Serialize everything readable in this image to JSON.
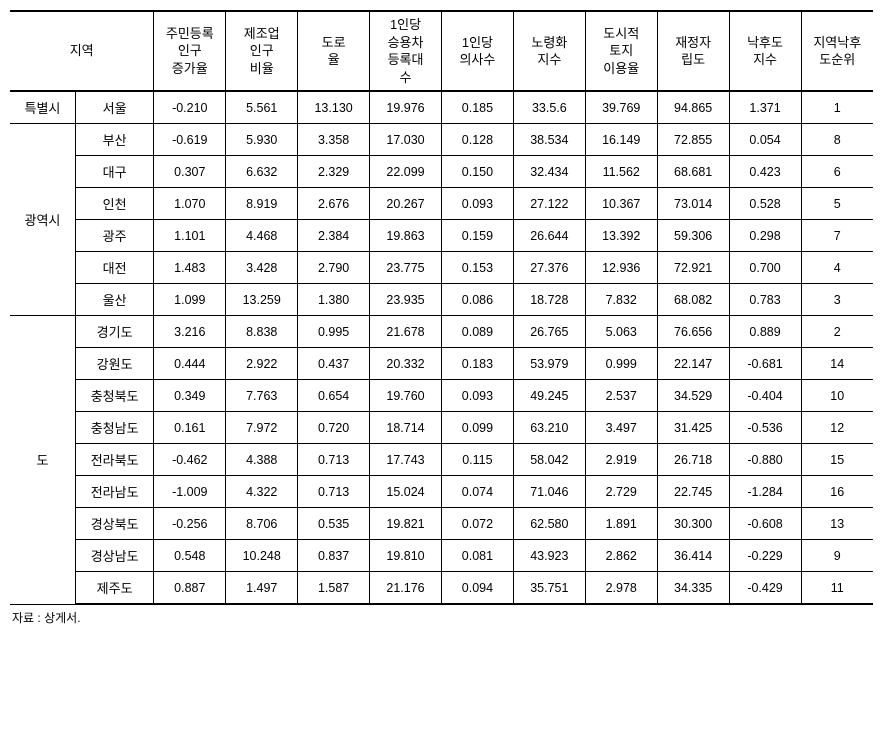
{
  "headers": {
    "region": "지역",
    "col1": "주민등록\n인구\n증가율",
    "col2": "제조업\n인구\n비율",
    "col3": "도로\n율",
    "col4": "1인당\n승용차\n등록대\n수",
    "col5": "1인당\n의사수",
    "col6": "노령화\n지수",
    "col7": "도시적\n토지\n이용율",
    "col8": "재정자\n립도",
    "col9": "낙후도\n지수",
    "col10": "지역낙후\n도순위"
  },
  "groups": [
    {
      "label": "특별시",
      "rows": [
        {
          "region": "서울",
          "v": [
            "-0.210",
            "5.561",
            "13.130",
            "19.976",
            "0.185",
            "33.5.6",
            "39.769",
            "94.865",
            "1.371",
            "1"
          ]
        }
      ]
    },
    {
      "label": "광역시",
      "rows": [
        {
          "region": "부산",
          "v": [
            "-0.619",
            "5.930",
            "3.358",
            "17.030",
            "0.128",
            "38.534",
            "16.149",
            "72.855",
            "0.054",
            "8"
          ]
        },
        {
          "region": "대구",
          "v": [
            "0.307",
            "6.632",
            "2.329",
            "22.099",
            "0.150",
            "32.434",
            "11.562",
            "68.681",
            "0.423",
            "6"
          ]
        },
        {
          "region": "인천",
          "v": [
            "1.070",
            "8.919",
            "2.676",
            "20.267",
            "0.093",
            "27.122",
            "10.367",
            "73.014",
            "0.528",
            "5"
          ]
        },
        {
          "region": "광주",
          "v": [
            "1.101",
            "4.468",
            "2.384",
            "19.863",
            "0.159",
            "26.644",
            "13.392",
            "59.306",
            "0.298",
            "7"
          ]
        },
        {
          "region": "대전",
          "v": [
            "1.483",
            "3.428",
            "2.790",
            "23.775",
            "0.153",
            "27.376",
            "12.936",
            "72.921",
            "0.700",
            "4"
          ]
        },
        {
          "region": "울산",
          "v": [
            "1.099",
            "13.259",
            "1.380",
            "23.935",
            "0.086",
            "18.728",
            "7.832",
            "68.082",
            "0.783",
            "3"
          ]
        }
      ]
    },
    {
      "label": "도",
      "rows": [
        {
          "region": "경기도",
          "v": [
            "3.216",
            "8.838",
            "0.995",
            "21.678",
            "0.089",
            "26.765",
            "5.063",
            "76.656",
            "0.889",
            "2"
          ]
        },
        {
          "region": "강원도",
          "v": [
            "0.444",
            "2.922",
            "0.437",
            "20.332",
            "0.183",
            "53.979",
            "0.999",
            "22.147",
            "-0.681",
            "14"
          ]
        },
        {
          "region": "충청북도",
          "v": [
            "0.349",
            "7.763",
            "0.654",
            "19.760",
            "0.093",
            "49.245",
            "2.537",
            "34.529",
            "-0.404",
            "10"
          ]
        },
        {
          "region": "충청남도",
          "v": [
            "0.161",
            "7.972",
            "0.720",
            "18.714",
            "0.099",
            "63.210",
            "3.497",
            "31.425",
            "-0.536",
            "12"
          ]
        },
        {
          "region": "전라북도",
          "v": [
            "-0.462",
            "4.388",
            "0.713",
            "17.743",
            "0.115",
            "58.042",
            "2.919",
            "26.718",
            "-0.880",
            "15"
          ]
        },
        {
          "region": "전라남도",
          "v": [
            "-1.009",
            "4.322",
            "0.713",
            "15.024",
            "0.074",
            "71.046",
            "2.729",
            "22.745",
            "-1.284",
            "16"
          ]
        },
        {
          "region": "경상북도",
          "v": [
            "-0.256",
            "8.706",
            "0.535",
            "19.821",
            "0.072",
            "62.580",
            "1.891",
            "30.300",
            "-0.608",
            "13"
          ]
        },
        {
          "region": "경상남도",
          "v": [
            "0.548",
            "10.248",
            "0.837",
            "19.810",
            "0.081",
            "43.923",
            "2.862",
            "36.414",
            "-0.229",
            "9"
          ]
        },
        {
          "region": "제주도",
          "v": [
            "0.887",
            "1.497",
            "1.587",
            "21.176",
            "0.094",
            "35.751",
            "2.978",
            "34.335",
            "-0.429",
            "11"
          ]
        }
      ]
    }
  ],
  "footnote": "자료 : 상게서."
}
